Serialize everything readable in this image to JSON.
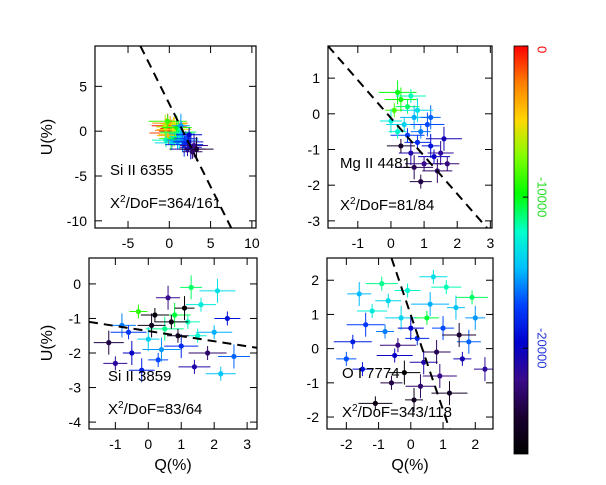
{
  "chart_data": [
    {
      "type": "scatter",
      "panel": "top-left",
      "label": "Si II 6355",
      "chi2_prefix": "X",
      "chi2_sup": "2",
      "chi2_text": "/DoF=364/161",
      "ylabel": "U(%)",
      "xlabel": "",
      "xlim": [
        -9,
        10.5
      ],
      "ylim": [
        -10.8,
        9.5
      ],
      "xticks": [
        "-5",
        "0",
        "5",
        "10"
      ],
      "xtick_values": [
        -5,
        0,
        5,
        10
      ],
      "yticks": [
        "5",
        "0",
        "-5",
        "-10"
      ],
      "ytick_values": [
        5,
        0,
        -5,
        -10
      ],
      "fit_line": [
        [
          -3.5,
          9.5
        ],
        [
          7.5,
          -10.8
        ]
      ],
      "points": [
        {
          "x": 0.0,
          "y": 0.3,
          "c": 0
        },
        {
          "x": -0.2,
          "y": 0.6,
          "c": 400
        },
        {
          "x": 0.2,
          "y": 0.0,
          "c": 800
        },
        {
          "x": -0.1,
          "y": -0.2,
          "c": 1200
        },
        {
          "x": 0.3,
          "y": 0.5,
          "c": 1600
        },
        {
          "x": -0.4,
          "y": 0.1,
          "c": 2200
        },
        {
          "x": 0.1,
          "y": 0.9,
          "c": 2800
        },
        {
          "x": 0.4,
          "y": -0.4,
          "c": 3400
        },
        {
          "x": -0.3,
          "y": -0.5,
          "c": 4000
        },
        {
          "x": 0.6,
          "y": 0.2,
          "c": 4800
        },
        {
          "x": 0.5,
          "y": 0.8,
          "c": 5600
        },
        {
          "x": -0.5,
          "y": 0.5,
          "c": 6400
        },
        {
          "x": 0.8,
          "y": -0.2,
          "c": 7200
        },
        {
          "x": 0.2,
          "y": -0.8,
          "c": 8000
        },
        {
          "x": -0.2,
          "y": 1.1,
          "c": 8800
        },
        {
          "x": 0.9,
          "y": 0.4,
          "c": 9600
        },
        {
          "x": 0.6,
          "y": -0.9,
          "c": 10400
        },
        {
          "x": 1.1,
          "y": -0.1,
          "c": 11200
        },
        {
          "x": -0.4,
          "y": -1.0,
          "c": 12000
        },
        {
          "x": 1.2,
          "y": -0.6,
          "c": 12800
        },
        {
          "x": 0.3,
          "y": -1.3,
          "c": 13600
        },
        {
          "x": 1.5,
          "y": -0.3,
          "c": 14400
        },
        {
          "x": 1.0,
          "y": -1.2,
          "c": 15200
        },
        {
          "x": 1.6,
          "y": -1.0,
          "c": 16000
        },
        {
          "x": 2.0,
          "y": -0.8,
          "c": 17000
        },
        {
          "x": 1.8,
          "y": -1.5,
          "c": 18000
        },
        {
          "x": 2.3,
          "y": -1.2,
          "c": 19000
        },
        {
          "x": 2.6,
          "y": -1.8,
          "c": 20000
        },
        {
          "x": 2.2,
          "y": -2.0,
          "c": 21000
        },
        {
          "x": 3.0,
          "y": -1.6,
          "c": 22000
        },
        {
          "x": 2.8,
          "y": -2.3,
          "c": 23000
        },
        {
          "x": 3.3,
          "y": -2.0,
          "c": 24500
        },
        {
          "x": 2.4,
          "y": -0.4,
          "c": 19500
        },
        {
          "x": 1.4,
          "y": 0.6,
          "c": 15500
        }
      ]
    },
    {
      "type": "scatter",
      "panel": "top-right",
      "label": "Mg II 4481",
      "chi2_prefix": "X",
      "chi2_sup": "2",
      "chi2_text": "/DoF=81/84",
      "ylabel": "",
      "xlabel": "",
      "xlim": [
        -1.9,
        3.05
      ],
      "ylim": [
        -3.2,
        1.9
      ],
      "xticks": [
        "-1",
        "0",
        "1",
        "2",
        "3"
      ],
      "xtick_values": [
        -1,
        0,
        1,
        2,
        3
      ],
      "yticks": [
        "1",
        "0",
        "-1",
        "-2",
        "-3"
      ],
      "ytick_values": [
        1,
        0,
        -1,
        -2,
        -3
      ],
      "fit_line": [
        [
          -1.9,
          1.9
        ],
        [
          2.9,
          -3.2
        ]
      ],
      "points": [
        {
          "x": 0.1,
          "y": 0.1,
          "c": 8500
        },
        {
          "x": 0.3,
          "y": 0.4,
          "c": 9500
        },
        {
          "x": 0.5,
          "y": 0.2,
          "c": 11000
        },
        {
          "x": 0.2,
          "y": 0.6,
          "c": 10000
        },
        {
          "x": 0.6,
          "y": 0.5,
          "c": 12000
        },
        {
          "x": 0.0,
          "y": -0.2,
          "c": 13000
        },
        {
          "x": 0.4,
          "y": -0.3,
          "c": 14000
        },
        {
          "x": 0.7,
          "y": -0.1,
          "c": 15000
        },
        {
          "x": 0.9,
          "y": -0.5,
          "c": 16000
        },
        {
          "x": 1.1,
          "y": -0.3,
          "c": 17000
        },
        {
          "x": 0.8,
          "y": -0.8,
          "c": 18000
        },
        {
          "x": 1.2,
          "y": -0.9,
          "c": 19000
        },
        {
          "x": 1.3,
          "y": -1.2,
          "c": 20000
        },
        {
          "x": 0.6,
          "y": -1.1,
          "c": 21000
        },
        {
          "x": 1.0,
          "y": -1.4,
          "c": 22000
        },
        {
          "x": 1.4,
          "y": -1.6,
          "c": 23000
        },
        {
          "x": 0.9,
          "y": -1.9,
          "c": 24000
        },
        {
          "x": 1.6,
          "y": -0.7,
          "c": 20500
        },
        {
          "x": 0.3,
          "y": -0.9,
          "c": 25000
        },
        {
          "x": 1.2,
          "y": -0.1,
          "c": 16500
        },
        {
          "x": 0.5,
          "y": -0.6,
          "c": 17500
        },
        {
          "x": 1.5,
          "y": -1.1,
          "c": 21500
        },
        {
          "x": 0.2,
          "y": -0.5,
          "c": 12500
        },
        {
          "x": 0.8,
          "y": 0.1,
          "c": 13500
        },
        {
          "x": 1.7,
          "y": -1.4,
          "c": 22500
        },
        {
          "x": 0.7,
          "y": -1.5,
          "c": 23500
        }
      ]
    },
    {
      "type": "scatter",
      "panel": "bottom-left",
      "label": "Si II 3859",
      "chi2_prefix": "X",
      "chi2_sup": "2",
      "chi2_text": "/DoF=83/64",
      "ylabel": "U(%)",
      "xlabel": "Q(%)",
      "xlim": [
        -1.8,
        3.3
      ],
      "ylim": [
        -4.2,
        0.75
      ],
      "xticks": [
        "-1",
        "0",
        "1",
        "2",
        "3"
      ],
      "xtick_values": [
        -1,
        0,
        1,
        2,
        3
      ],
      "yticks": [
        "0",
        "-1",
        "-2",
        "-3",
        "-4"
      ],
      "ytick_values": [
        0,
        -1,
        -2,
        -3,
        -4
      ],
      "fit_line": [
        [
          -1.8,
          -1.1
        ],
        [
          3.3,
          -1.85
        ]
      ],
      "points": [
        {
          "x": -0.3,
          "y": -0.8,
          "c": 9000
        },
        {
          "x": 0.8,
          "y": -0.9,
          "c": 10500
        },
        {
          "x": 1.2,
          "y": -1.1,
          "c": 12000
        },
        {
          "x": 0.5,
          "y": -1.3,
          "c": 11500
        },
        {
          "x": 1.6,
          "y": -0.6,
          "c": 13000
        },
        {
          "x": 0.0,
          "y": -1.6,
          "c": 14000
        },
        {
          "x": 2.0,
          "y": -1.4,
          "c": 15000
        },
        {
          "x": -0.8,
          "y": -1.2,
          "c": 16000
        },
        {
          "x": 0.3,
          "y": -2.2,
          "c": 17000
        },
        {
          "x": 1.0,
          "y": -1.8,
          "c": 18000
        },
        {
          "x": 2.4,
          "y": -1.0,
          "c": 19000
        },
        {
          "x": -0.5,
          "y": -2.0,
          "c": 20000
        },
        {
          "x": 1.4,
          "y": -2.4,
          "c": 21000
        },
        {
          "x": 0.6,
          "y": -0.4,
          "c": 22000
        },
        {
          "x": 1.8,
          "y": -2.0,
          "c": 23000
        },
        {
          "x": -1.2,
          "y": -1.7,
          "c": 24000
        },
        {
          "x": 0.9,
          "y": -1.5,
          "c": 25000
        },
        {
          "x": 2.1,
          "y": -0.2,
          "c": 13500
        },
        {
          "x": 0.2,
          "y": -0.9,
          "c": 26500
        },
        {
          "x": 1.1,
          "y": -0.7,
          "c": 27000
        },
        {
          "x": 0.7,
          "y": -1.1,
          "c": 26000
        },
        {
          "x": -0.2,
          "y": -2.5,
          "c": 18500
        },
        {
          "x": 1.5,
          "y": -1.5,
          "c": 12500
        },
        {
          "x": 2.6,
          "y": -2.1,
          "c": 16500
        },
        {
          "x": -1.0,
          "y": -2.3,
          "c": 21500
        },
        {
          "x": 0.4,
          "y": -1.9,
          "c": 15500
        },
        {
          "x": 2.2,
          "y": -2.6,
          "c": 14500
        },
        {
          "x": 1.3,
          "y": -0.1,
          "c": 11000
        },
        {
          "x": -0.6,
          "y": -1.4,
          "c": 17500
        },
        {
          "x": 0.1,
          "y": -1.2,
          "c": 25500
        }
      ]
    },
    {
      "type": "scatter",
      "panel": "bottom-right",
      "label": "O I 7774",
      "chi2_prefix": "X",
      "chi2_sup": "2",
      "chi2_text": "/DoF=343/118",
      "ylabel": "",
      "xlabel": "Q(%)",
      "xlim": [
        -2.6,
        2.55
      ],
      "ylim": [
        -2.35,
        2.65
      ],
      "xticks": [
        "-2",
        "-1",
        "0",
        "1",
        "2"
      ],
      "xtick_values": [
        -2,
        -1,
        0,
        1,
        2
      ],
      "yticks": [
        "2",
        "1",
        "0",
        "-1",
        "-2"
      ],
      "ytick_values": [
        2,
        1,
        0,
        -1,
        -2
      ],
      "fit_line": [
        [
          -0.6,
          2.65
        ],
        [
          1.2,
          -2.35
        ]
      ],
      "points": [
        {
          "x": -0.8,
          "y": 0.5,
          "c": 16000
        },
        {
          "x": -0.3,
          "y": 0.9,
          "c": 14000
        },
        {
          "x": 0.2,
          "y": 0.3,
          "c": 18000
        },
        {
          "x": 0.6,
          "y": 1.3,
          "c": 15000
        },
        {
          "x": -1.2,
          "y": 1.1,
          "c": 13000
        },
        {
          "x": 1.0,
          "y": 0.6,
          "c": 17000
        },
        {
          "x": -0.5,
          "y": -0.2,
          "c": 20000
        },
        {
          "x": 0.4,
          "y": -0.4,
          "c": 21000
        },
        {
          "x": -1.5,
          "y": -0.6,
          "c": 19000
        },
        {
          "x": 0.9,
          "y": -0.8,
          "c": 22000
        },
        {
          "x": -0.1,
          "y": 1.7,
          "c": 12500
        },
        {
          "x": 1.4,
          "y": 1.2,
          "c": 14500
        },
        {
          "x": -0.9,
          "y": 1.9,
          "c": 11500
        },
        {
          "x": 1.8,
          "y": 0.2,
          "c": 16500
        },
        {
          "x": -1.8,
          "y": 0.2,
          "c": 18500
        },
        {
          "x": 0.3,
          "y": -1.1,
          "c": 23000
        },
        {
          "x": -0.6,
          "y": -1.0,
          "c": 24000
        },
        {
          "x": 1.2,
          "y": -1.3,
          "c": 25000
        },
        {
          "x": 0.7,
          "y": 2.1,
          "c": 13500
        },
        {
          "x": 2.0,
          "y": 0.9,
          "c": 15500
        },
        {
          "x": -1.1,
          "y": -1.6,
          "c": 26000
        },
        {
          "x": 0.0,
          "y": 0.6,
          "c": 19500
        },
        {
          "x": 1.6,
          "y": -0.3,
          "c": 20500
        },
        {
          "x": -0.2,
          "y": -0.7,
          "c": 27000
        },
        {
          "x": 0.5,
          "y": 0.9,
          "c": 10500
        },
        {
          "x": -1.4,
          "y": 0.7,
          "c": 17500
        },
        {
          "x": 1.1,
          "y": 1.8,
          "c": 12000
        },
        {
          "x": 2.3,
          "y": -0.6,
          "c": 21500
        },
        {
          "x": -0.4,
          "y": 0.1,
          "c": 22500
        },
        {
          "x": 0.8,
          "y": -0.1,
          "c": 23500
        },
        {
          "x": -2.0,
          "y": -0.3,
          "c": 16800
        },
        {
          "x": 1.5,
          "y": 0.4,
          "c": 24500
        },
        {
          "x": -0.7,
          "y": 1.4,
          "c": 13800
        },
        {
          "x": 0.1,
          "y": -1.5,
          "c": 25500
        },
        {
          "x": 1.9,
          "y": 1.5,
          "c": 11000
        },
        {
          "x": -1.6,
          "y": 1.6,
          "c": 14800
        }
      ]
    }
  ],
  "colorbar": {
    "ticks": [
      "0",
      "-10000",
      "-20000"
    ],
    "tick_values": [
      0,
      -10000,
      -20000
    ],
    "range": [
      0,
      -27000
    ],
    "stops": [
      "#ff0000",
      "#ff7f00",
      "#ffd700",
      "#7fff00",
      "#00ff00",
      "#00ffcc",
      "#00bfff",
      "#0040ff",
      "#0000cd",
      "#3a0a8a",
      "#1a0030",
      "#000000"
    ],
    "tick_colors": [
      "#ff0000",
      "#22dd22",
      "#2233dd"
    ]
  }
}
